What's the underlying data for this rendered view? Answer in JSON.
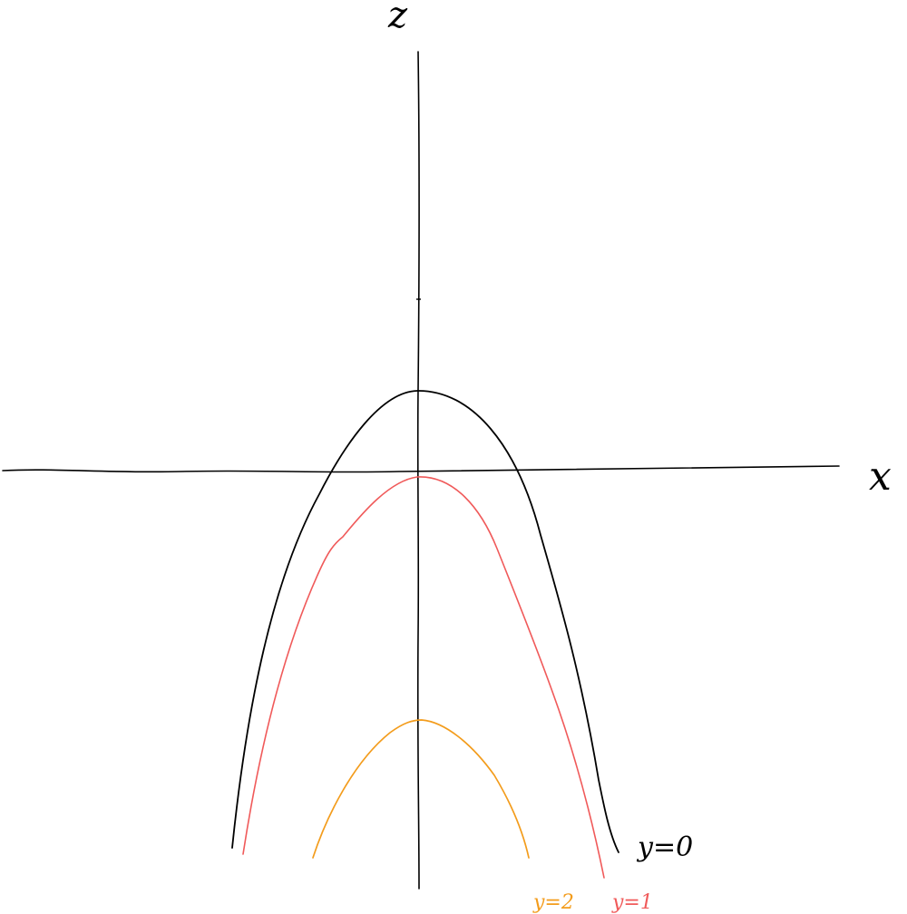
{
  "diagram": {
    "axes": {
      "horizontal_label": "x",
      "vertical_label": "z"
    },
    "curves": [
      {
        "label": "y=0",
        "color": "#000000"
      },
      {
        "label": "y=1",
        "color": "#f05a5a"
      },
      {
        "label": "y=2",
        "color": "#f39c1c"
      }
    ],
    "colors": {
      "axis": "#000000",
      "background": "#ffffff"
    }
  }
}
